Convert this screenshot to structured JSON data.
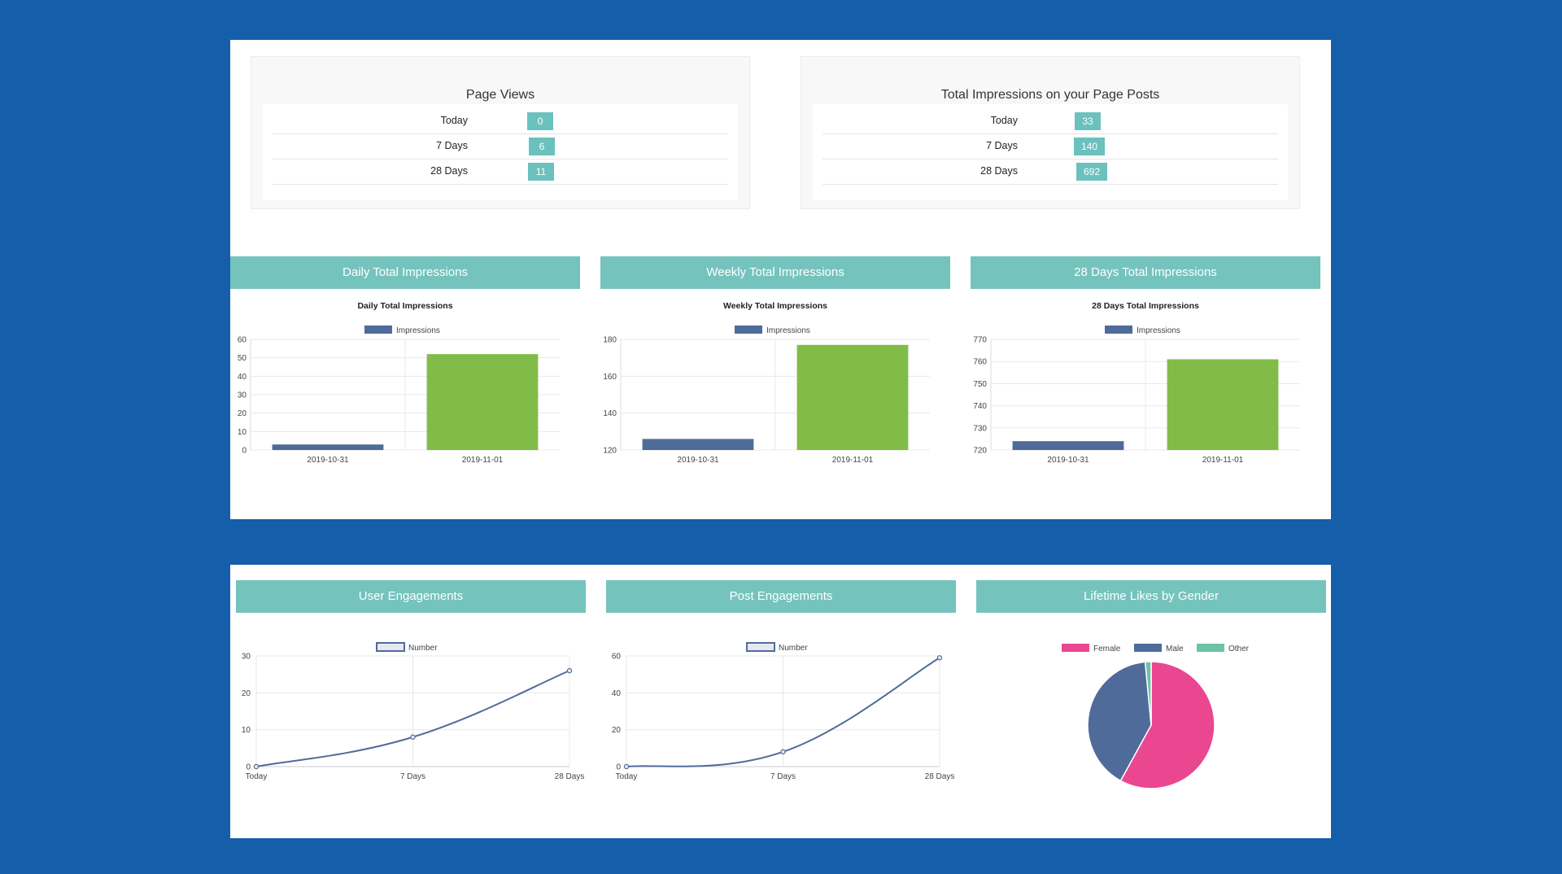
{
  "page_views": {
    "title": "Page Views",
    "rows": [
      {
        "label": "Today",
        "value": "0"
      },
      {
        "label": "7 Days",
        "value": "6"
      },
      {
        "label": "28 Days",
        "value": "11"
      }
    ]
  },
  "total_impressions": {
    "title": "Total Impressions on your Page Posts",
    "rows": [
      {
        "label": "Today",
        "value": "33"
      },
      {
        "label": "7 Days",
        "value": "140"
      },
      {
        "label": "28 Days",
        "value": "692"
      }
    ]
  },
  "cards": {
    "daily": {
      "header": "Daily Total Impressions"
    },
    "weekly": {
      "header": "Weekly Total Impressions"
    },
    "days28": {
      "header": "28 Days Total Impressions"
    },
    "user_eng": {
      "header": "User Engagements"
    },
    "post_eng": {
      "header": "Post Engagements"
    },
    "gender": {
      "header": "Lifetime Likes by Gender"
    }
  },
  "colors": {
    "background": "#155ea9",
    "header": "#75c3bd",
    "badge": "#6bc1bd",
    "bar_primary": "#4f6b9a",
    "bar_highlight": "#82bc48",
    "female": "#ea4790",
    "male": "#4f6b9a",
    "other": "#6cc3a7"
  },
  "chart_data": [
    {
      "type": "bar",
      "title": "Daily Total Impressions",
      "legend": [
        "Impressions"
      ],
      "categories": [
        "2019-10-31",
        "2019-11-01"
      ],
      "values": [
        3,
        52
      ],
      "bar_colors": [
        "#4f6b9a",
        "#82bc48"
      ],
      "ylim": [
        0,
        60
      ],
      "yticks": [
        0,
        10,
        20,
        30,
        40,
        50,
        60
      ]
    },
    {
      "type": "bar",
      "title": "Weekly Total Impressions",
      "legend": [
        "Impressions"
      ],
      "categories": [
        "2019-10-31",
        "2019-11-01"
      ],
      "values": [
        126,
        177
      ],
      "bar_colors": [
        "#4f6b9a",
        "#82bc48"
      ],
      "ylim": [
        120,
        180
      ],
      "yticks": [
        120,
        140,
        160,
        180
      ]
    },
    {
      "type": "bar",
      "title": "28 Days Total Impressions",
      "legend": [
        "Impressions"
      ],
      "categories": [
        "2019-10-31",
        "2019-11-01"
      ],
      "values": [
        724,
        761
      ],
      "bar_colors": [
        "#4f6b9a",
        "#82bc48"
      ],
      "ylim": [
        720,
        770
      ],
      "yticks": [
        720,
        730,
        740,
        750,
        760,
        770
      ]
    },
    {
      "type": "line",
      "title": "",
      "legend": [
        "Number"
      ],
      "categories": [
        "Today",
        "7 Days",
        "28 Days"
      ],
      "values": [
        0,
        8,
        26
      ],
      "ylim": [
        0,
        30
      ],
      "yticks": [
        0,
        10,
        20,
        30
      ]
    },
    {
      "type": "line",
      "title": "",
      "legend": [
        "Number"
      ],
      "categories": [
        "Today",
        "7 Days",
        "28 Days"
      ],
      "values": [
        0,
        8,
        59
      ],
      "ylim": [
        0,
        60
      ],
      "yticks": [
        0,
        20,
        40,
        60
      ]
    },
    {
      "type": "pie",
      "title": "",
      "legend": [
        "Female",
        "Male",
        "Other"
      ],
      "values": [
        58,
        40.5,
        1.5
      ],
      "colors": [
        "#ea4790",
        "#4f6b9a",
        "#6cc3a7"
      ]
    }
  ]
}
